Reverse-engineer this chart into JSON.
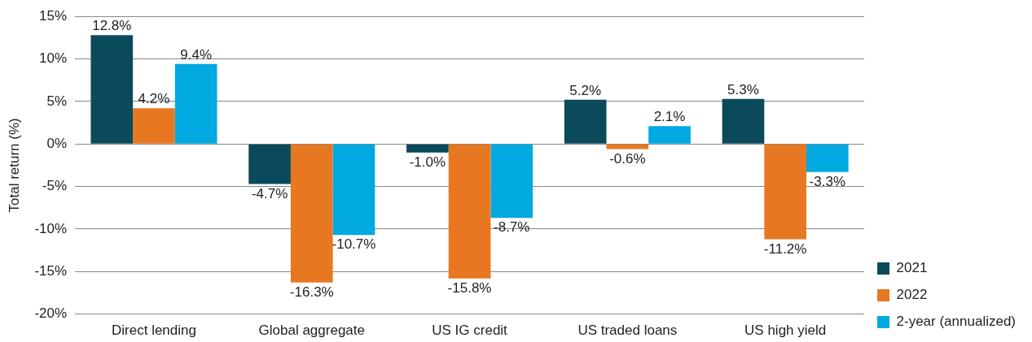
{
  "chart_data": {
    "type": "bar",
    "ylabel": "Total return (%)",
    "categories": [
      "Direct lending",
      "Global aggregate",
      "US IG credit",
      "US traded loans",
      "US high yield"
    ],
    "series": [
      {
        "name": "2021",
        "color": "#0b4a5a",
        "values": [
          12.8,
          -4.7,
          -1.0,
          5.2,
          5.3
        ],
        "value_labels": [
          "12.8%",
          "-4.7%",
          "-1.0%",
          "5.2%",
          "5.3%"
        ]
      },
      {
        "name": "2022",
        "color": "#e87722",
        "values": [
          4.2,
          -16.3,
          -15.8,
          -0.6,
          -11.2
        ],
        "value_labels": [
          "4.2%",
          "-16.3%",
          "-15.8%",
          "-0.6%",
          "-11.2%"
        ]
      },
      {
        "name": "2-year (annualized)",
        "color": "#00a9e0",
        "values": [
          9.4,
          -10.7,
          -8.7,
          2.1,
          -3.3
        ],
        "value_labels": [
          "9.4%",
          "-10.7%",
          "-8.7%",
          "2.1%",
          "-3.3%"
        ]
      }
    ],
    "ylim": [
      -20,
      15
    ],
    "yticks": [
      {
        "value": -20,
        "label": "-20%"
      },
      {
        "value": -15,
        "label": "-15%"
      },
      {
        "value": -10,
        "label": "-10%"
      },
      {
        "value": -5,
        "label": "-5%"
      },
      {
        "value": 0,
        "label": "0%"
      },
      {
        "value": 5,
        "label": "5%"
      },
      {
        "value": 10,
        "label": "10%"
      },
      {
        "value": 15,
        "label": "15%"
      }
    ],
    "grid": "y",
    "legend": "right"
  }
}
